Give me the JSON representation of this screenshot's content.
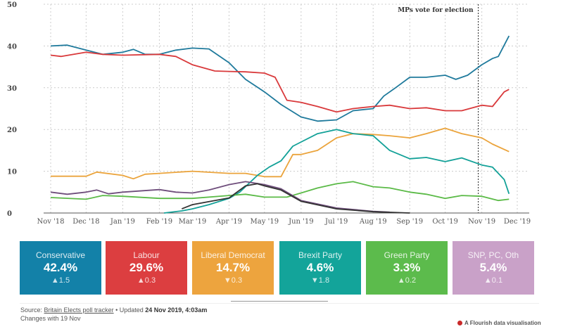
{
  "chart_data": {
    "type": "line",
    "ylim": [
      0,
      50
    ],
    "yticks": [
      0,
      10,
      20,
      30,
      40,
      50
    ],
    "xlim": [
      "2018-11-01",
      "2019-12-01"
    ],
    "xticks": [
      {
        "date": "2018-11-01",
        "label": "Nov '18"
      },
      {
        "date": "2018-12-01",
        "label": "Dec '18"
      },
      {
        "date": "2019-01-01",
        "label": "Jan '19"
      },
      {
        "date": "2019-02-01",
        "label": "Feb '19"
      },
      {
        "date": "2019-03-01",
        "label": "Mar '19"
      },
      {
        "date": "2019-04-01",
        "label": "Apr '19"
      },
      {
        "date": "2019-05-01",
        "label": "May '19"
      },
      {
        "date": "2019-06-01",
        "label": "Jun '19"
      },
      {
        "date": "2019-07-01",
        "label": "Jul '19"
      },
      {
        "date": "2019-08-01",
        "label": "Aug '19"
      },
      {
        "date": "2019-09-01",
        "label": "Sep '19"
      },
      {
        "date": "2019-10-01",
        "label": "Oct '19"
      },
      {
        "date": "2019-11-01",
        "label": "Nov '19"
      },
      {
        "date": "2019-12-01",
        "label": "Dec '19"
      }
    ],
    "grid": true,
    "annotation": {
      "date": "2019-10-29",
      "label": "MPs vote for election"
    },
    "series": [
      {
        "key": "conservative",
        "color": "#1f7a9c",
        "points": [
          [
            "2018-11-01",
            40
          ],
          [
            "2018-11-15",
            40.2
          ],
          [
            "2018-12-01",
            39
          ],
          [
            "2018-12-15",
            38
          ],
          [
            "2019-01-01",
            38.5
          ],
          [
            "2019-01-10",
            39.2
          ],
          [
            "2019-01-20",
            38
          ],
          [
            "2019-02-01",
            38
          ],
          [
            "2019-02-15",
            39
          ],
          [
            "2019-03-01",
            39.5
          ],
          [
            "2019-03-15",
            39.3
          ],
          [
            "2019-04-01",
            36
          ],
          [
            "2019-04-15",
            32
          ],
          [
            "2019-05-01",
            29
          ],
          [
            "2019-05-15",
            26
          ],
          [
            "2019-06-01",
            23
          ],
          [
            "2019-06-15",
            22
          ],
          [
            "2019-07-01",
            22.3
          ],
          [
            "2019-07-15",
            24.5
          ],
          [
            "2019-08-01",
            25
          ],
          [
            "2019-08-10",
            28
          ],
          [
            "2019-08-20",
            30
          ],
          [
            "2019-09-01",
            32.5
          ],
          [
            "2019-09-15",
            32.5
          ],
          [
            "2019-10-01",
            33
          ],
          [
            "2019-10-10",
            32
          ],
          [
            "2019-10-20",
            33
          ],
          [
            "2019-11-01",
            35.5
          ],
          [
            "2019-11-10",
            37
          ],
          [
            "2019-11-15",
            37.5
          ],
          [
            "2019-11-24",
            42.4
          ]
        ]
      },
      {
        "key": "labour",
        "color": "#d9393b",
        "points": [
          [
            "2018-11-01",
            37.8
          ],
          [
            "2018-11-10",
            37.5
          ],
          [
            "2018-12-01",
            38.5
          ],
          [
            "2018-12-15",
            38
          ],
          [
            "2019-01-01",
            37.8
          ],
          [
            "2019-02-01",
            38
          ],
          [
            "2019-02-15",
            37.5
          ],
          [
            "2019-03-01",
            35.5
          ],
          [
            "2019-03-20",
            34
          ],
          [
            "2019-04-01",
            33.9
          ],
          [
            "2019-04-15",
            33.8
          ],
          [
            "2019-05-01",
            33.5
          ],
          [
            "2019-05-10",
            32.5
          ],
          [
            "2019-05-20",
            27
          ],
          [
            "2019-06-01",
            26.5
          ],
          [
            "2019-06-15",
            25.5
          ],
          [
            "2019-07-01",
            24.2
          ],
          [
            "2019-07-15",
            25
          ],
          [
            "2019-08-01",
            25.5
          ],
          [
            "2019-08-15",
            25.8
          ],
          [
            "2019-09-01",
            25
          ],
          [
            "2019-09-15",
            25.2
          ],
          [
            "2019-10-01",
            24.5
          ],
          [
            "2019-10-15",
            24.5
          ],
          [
            "2019-11-01",
            25.8
          ],
          [
            "2019-11-10",
            25.5
          ],
          [
            "2019-11-20",
            29
          ],
          [
            "2019-11-24",
            29.6
          ]
        ]
      },
      {
        "key": "libdem",
        "color": "#eba43c",
        "points": [
          [
            "2018-11-01",
            8.8
          ],
          [
            "2018-12-01",
            8.8
          ],
          [
            "2018-12-10",
            9.8
          ],
          [
            "2019-01-01",
            9
          ],
          [
            "2019-01-10",
            8.2
          ],
          [
            "2019-01-20",
            9.3
          ],
          [
            "2019-02-01",
            9.5
          ],
          [
            "2019-03-01",
            10
          ],
          [
            "2019-04-01",
            9.5
          ],
          [
            "2019-04-15",
            9.5
          ],
          [
            "2019-05-01",
            8.7
          ],
          [
            "2019-05-15",
            8.7
          ],
          [
            "2019-05-25",
            14
          ],
          [
            "2019-06-01",
            14
          ],
          [
            "2019-06-15",
            15
          ],
          [
            "2019-07-01",
            18
          ],
          [
            "2019-07-15",
            19
          ],
          [
            "2019-08-01",
            18.8
          ],
          [
            "2019-08-15",
            18.5
          ],
          [
            "2019-09-01",
            18
          ],
          [
            "2019-09-15",
            19
          ],
          [
            "2019-10-01",
            20.3
          ],
          [
            "2019-10-15",
            19
          ],
          [
            "2019-11-01",
            18
          ],
          [
            "2019-11-10",
            16.5
          ],
          [
            "2019-11-24",
            14.7
          ]
        ]
      },
      {
        "key": "brexit",
        "color": "#13a198",
        "points": [
          [
            "2019-02-05",
            0
          ],
          [
            "2019-02-20",
            0.5
          ],
          [
            "2019-03-01",
            1
          ],
          [
            "2019-03-15",
            2
          ],
          [
            "2019-04-01",
            3.5
          ],
          [
            "2019-04-10",
            5
          ],
          [
            "2019-04-25",
            9
          ],
          [
            "2019-05-05",
            11
          ],
          [
            "2019-05-15",
            12.5
          ],
          [
            "2019-05-25",
            16
          ],
          [
            "2019-06-01",
            17
          ],
          [
            "2019-06-15",
            19
          ],
          [
            "2019-07-01",
            20
          ],
          [
            "2019-07-15",
            19
          ],
          [
            "2019-08-01",
            18.5
          ],
          [
            "2019-08-15",
            15
          ],
          [
            "2019-09-01",
            13
          ],
          [
            "2019-09-15",
            13.3
          ],
          [
            "2019-10-01",
            12.3
          ],
          [
            "2019-10-15",
            13.2
          ],
          [
            "2019-11-01",
            11.5
          ],
          [
            "2019-11-10",
            11
          ],
          [
            "2019-11-20",
            8
          ],
          [
            "2019-11-24",
            4.6
          ]
        ]
      },
      {
        "key": "green",
        "color": "#5bba47",
        "points": [
          [
            "2018-11-01",
            3.7
          ],
          [
            "2018-12-01",
            3.3
          ],
          [
            "2018-12-15",
            4.2
          ],
          [
            "2019-01-01",
            4
          ],
          [
            "2019-02-01",
            3.5
          ],
          [
            "2019-03-01",
            3.5
          ],
          [
            "2019-04-01",
            4.2
          ],
          [
            "2019-04-15",
            4.5
          ],
          [
            "2019-05-01",
            3.8
          ],
          [
            "2019-05-20",
            3.8
          ],
          [
            "2019-06-01",
            4.8
          ],
          [
            "2019-06-15",
            6
          ],
          [
            "2019-07-01",
            7
          ],
          [
            "2019-07-15",
            7.5
          ],
          [
            "2019-08-01",
            6.3
          ],
          [
            "2019-08-15",
            6
          ],
          [
            "2019-09-01",
            5
          ],
          [
            "2019-09-15",
            4.5
          ],
          [
            "2019-10-01",
            3.5
          ],
          [
            "2019-10-15",
            4.2
          ],
          [
            "2019-11-01",
            4
          ],
          [
            "2019-11-15",
            3
          ],
          [
            "2019-11-24",
            3.3
          ]
        ]
      },
      {
        "key": "snp_pc_oth",
        "color": "#6f4e7c",
        "points": [
          [
            "2018-11-01",
            5
          ],
          [
            "2018-11-15",
            4.5
          ],
          [
            "2018-12-01",
            5
          ],
          [
            "2018-12-10",
            5.5
          ],
          [
            "2018-12-20",
            4.6
          ],
          [
            "2019-01-01",
            5
          ],
          [
            "2019-02-01",
            5.6
          ],
          [
            "2019-02-15",
            5
          ],
          [
            "2019-03-01",
            4.8
          ],
          [
            "2019-03-15",
            5.5
          ],
          [
            "2019-04-01",
            6.8
          ],
          [
            "2019-04-15",
            7.5
          ],
          [
            "2019-05-01",
            6.8
          ],
          [
            "2019-05-15",
            5.8
          ],
          [
            "2019-06-01",
            3
          ],
          [
            "2019-07-01",
            1.2
          ],
          [
            "2019-08-01",
            0.4
          ],
          [
            "2019-08-15",
            0.2
          ]
        ]
      },
      {
        "key": "other",
        "color": "#333333",
        "points": [
          [
            "2019-02-20",
            1
          ],
          [
            "2019-03-01",
            2
          ],
          [
            "2019-03-20",
            3
          ],
          [
            "2019-04-01",
            3.6
          ],
          [
            "2019-04-15",
            6.5
          ],
          [
            "2019-04-25",
            7
          ],
          [
            "2019-05-01",
            6.5
          ],
          [
            "2019-05-15",
            5.5
          ],
          [
            "2019-06-01",
            2.8
          ],
          [
            "2019-07-01",
            1
          ],
          [
            "2019-08-01",
            0.3
          ],
          [
            "2019-09-01",
            0
          ]
        ]
      }
    ]
  },
  "cards": [
    {
      "name": "Conservative",
      "value": "42.4%",
      "change": "▲1.5",
      "color": "#1381a8"
    },
    {
      "name": "Labour",
      "value": "29.6%",
      "change": "▲0.3",
      "color": "#dc3e40"
    },
    {
      "name": "Liberal Democrat",
      "value": "14.7%",
      "change": "▼0.3",
      "color": "#eda43e"
    },
    {
      "name": "Brexit Party",
      "value": "4.6%",
      "change": "▼1.8",
      "color": "#13a49a"
    },
    {
      "name": "Green Party",
      "value": "3.3%",
      "change": "▲0.2",
      "color": "#5cbb4c"
    },
    {
      "name": "SNP, PC, Oth",
      "value": "5.4%",
      "change": "▲0.1",
      "color": "#c9a1c8"
    }
  ],
  "footer": {
    "source_prefix": "Source: ",
    "source_link": "Britain Elects poll tracker",
    "updated_prefix": " • Updated ",
    "updated": "24 Nov 2019, 4:03am",
    "changes": "Changes with 19 Nov",
    "credit": "A Flourish data visualisation"
  }
}
